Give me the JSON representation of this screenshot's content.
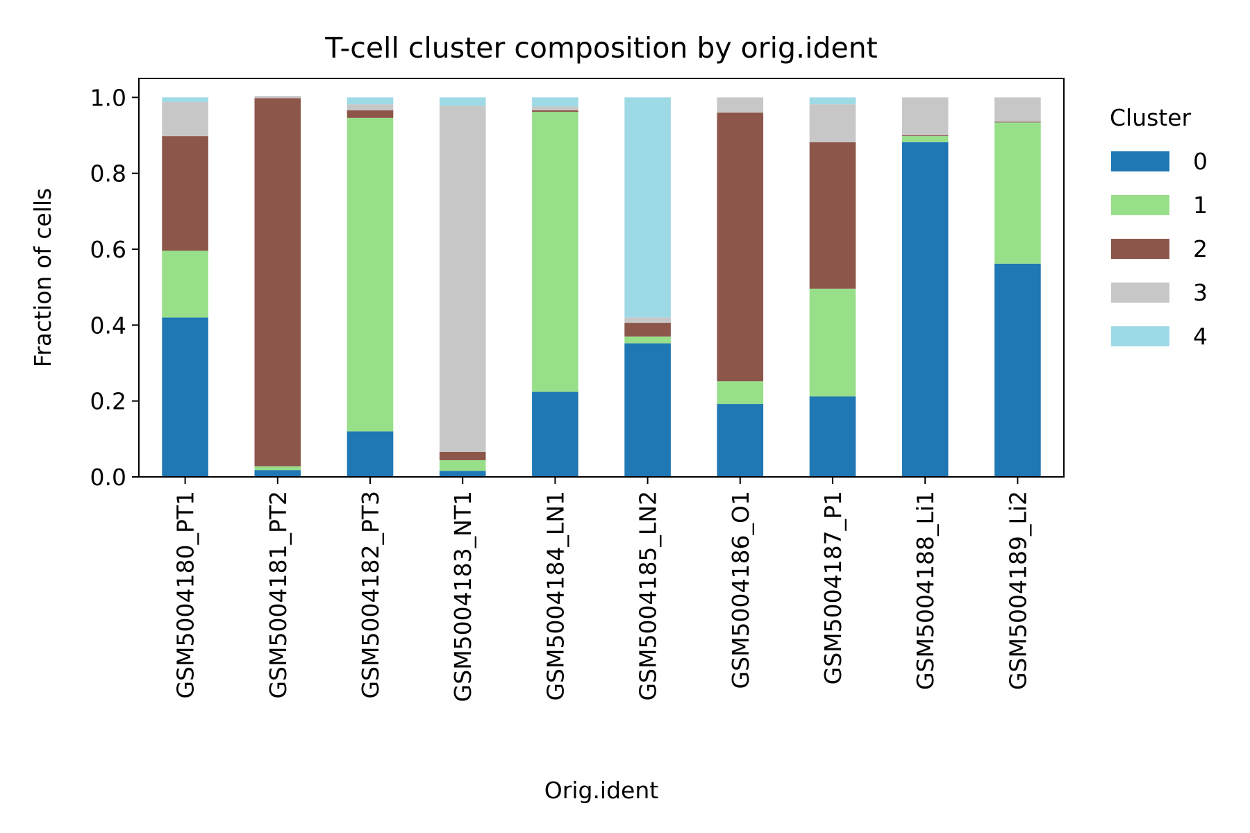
{
  "chart_data": {
    "type": "bar",
    "stacked": true,
    "title": "T-cell cluster composition by orig.ident",
    "xlabel": "Orig.ident",
    "ylabel": "Fraction of cells",
    "ylim": [
      0,
      1.05
    ],
    "yticks": [
      "0.0",
      "0.2",
      "0.4",
      "0.6",
      "0.8",
      "1.0"
    ],
    "grid": false,
    "legend": {
      "title": "Cluster",
      "position": "outside-right"
    },
    "categories": [
      "GSM5004180_PT1",
      "GSM5004181_PT2",
      "GSM5004182_PT3",
      "GSM5004183_NT1",
      "GSM5004184_LN1",
      "GSM5004185_LN2",
      "GSM5004186_O1",
      "GSM5004187_P1",
      "GSM5004188_Li1",
      "GSM5004189_Li2"
    ],
    "series": [
      {
        "name": "0",
        "color": "#1f77b4",
        "values": [
          0.42,
          0.018,
          0.12,
          0.016,
          0.224,
          0.352,
          0.192,
          0.212,
          0.882,
          0.562
        ]
      },
      {
        "name": "1",
        "color": "#98df8a",
        "values": [
          0.176,
          0.01,
          0.826,
          0.028,
          0.738,
          0.018,
          0.06,
          0.284,
          0.016,
          0.372
        ]
      },
      {
        "name": "2",
        "color": "#8c564b",
        "values": [
          0.302,
          0.97,
          0.02,
          0.022,
          0.004,
          0.036,
          0.708,
          0.386,
          0.002,
          0.002
        ]
      },
      {
        "name": "3",
        "color": "#c7c7c7",
        "values": [
          0.09,
          0.006,
          0.016,
          0.912,
          0.01,
          0.014,
          0.04,
          0.1,
          0.1,
          0.064
        ]
      },
      {
        "name": "4",
        "color": "#9edae5",
        "values": [
          0.012,
          0.0,
          0.018,
          0.022,
          0.024,
          0.58,
          0.0,
          0.018,
          0.0,
          0.0
        ]
      }
    ]
  }
}
